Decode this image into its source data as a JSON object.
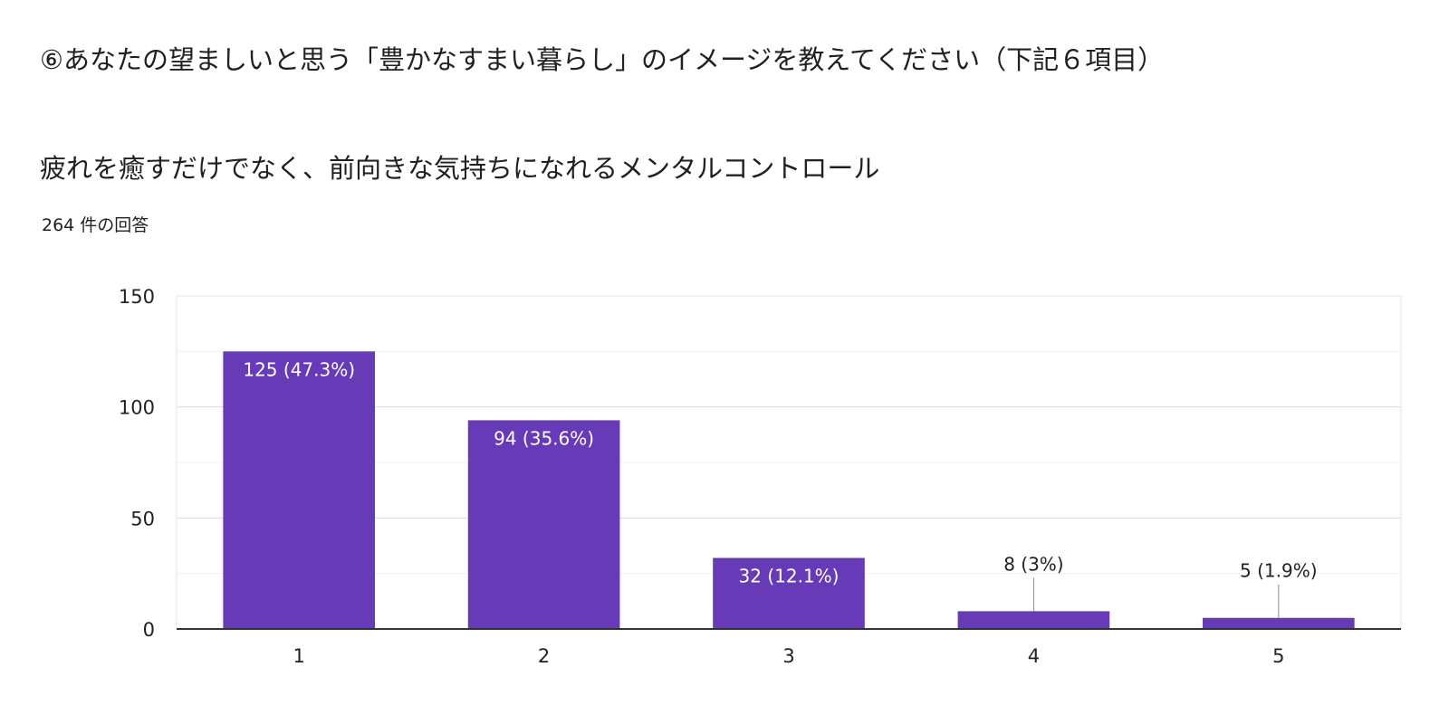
{
  "question": {
    "title": "⑥あなたの望ましいと思う「豊かなすまい暮らし」のイメージを教えてください（下記６項目）"
  },
  "chart_data": {
    "type": "bar",
    "title": "疲れを癒すだけでなく、前向きな気持ちになれるメンタルコントロール",
    "subtitle": "264 件の回答",
    "categories": [
      "1",
      "2",
      "3",
      "4",
      "5"
    ],
    "values": [
      125,
      94,
      32,
      8,
      5
    ],
    "data_labels": [
      "125 (47.3%)",
      "94 (35.6%)",
      "32 (12.1%)",
      "8 (3%)",
      "5 (1.9%)"
    ],
    "ylim": [
      0,
      150
    ],
    "yticks": [
      0,
      50,
      100,
      150
    ],
    "grid": true,
    "bar_color": "#673ab7",
    "xlabel": "",
    "ylabel": ""
  }
}
